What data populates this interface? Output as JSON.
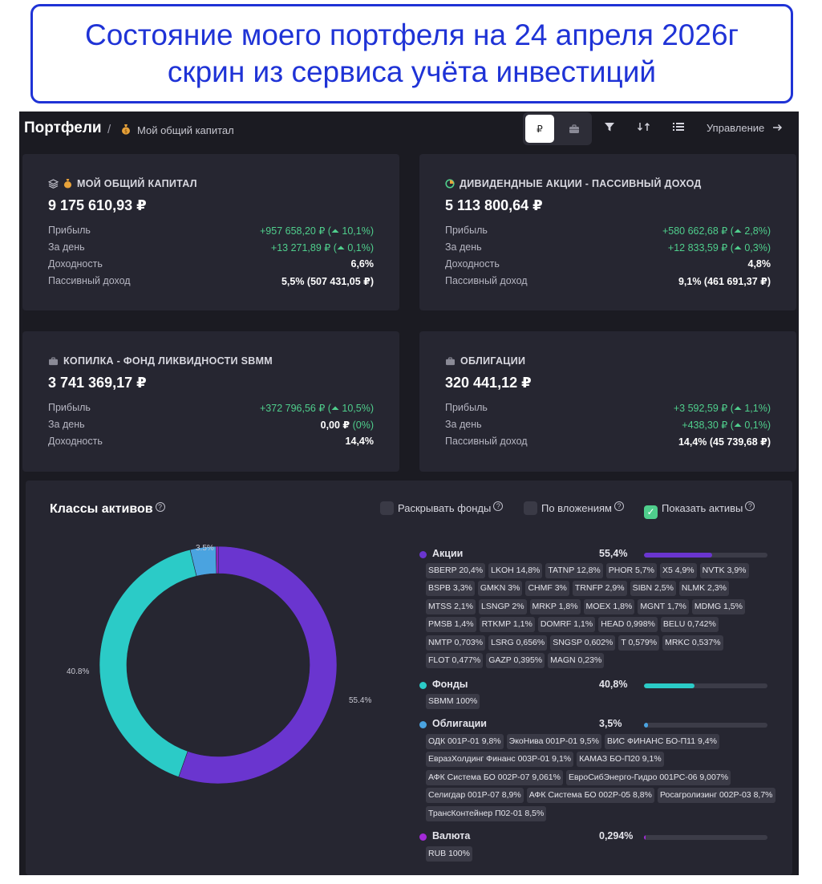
{
  "banner": {
    "line1": "Состояние моего портфеля на 24 апреля 2026г",
    "line2": "скрин из сервиса учёта инвестиций"
  },
  "header": {
    "title": "Портфели",
    "separator": "/",
    "breadcrumb": "Мой общий капитал",
    "currency_button": "₽",
    "manage_label": "Управление"
  },
  "cards": [
    {
      "title": "МОЙ ОБЩИЙ КАПИТАЛ",
      "value": "9 175 610,93 ₽",
      "rows": [
        {
          "label": "Прибыль",
          "value": "+957 658,20 ₽ (⏶ 10,1%)",
          "green": true
        },
        {
          "label": "За день",
          "value": "+13 271,89 ₽ (⏶ 0,1%)",
          "green": true
        },
        {
          "label": "Доходность",
          "value": "6,6%",
          "green": false
        },
        {
          "label": "Пассивный доход",
          "value": "5,5% (507 431,05 ₽)",
          "green": false
        }
      ]
    },
    {
      "title": "ДИВИДЕНДНЫЕ АКЦИИ - ПАССИВНЫЙ ДОХОД",
      "value": "5 113 800,64 ₽",
      "rows": [
        {
          "label": "Прибыль",
          "value": "+580 662,68 ₽ (⏶ 2,8%)",
          "green": true
        },
        {
          "label": "За день",
          "value": "+12 833,59 ₽ (⏶ 0,3%)",
          "green": true
        },
        {
          "label": "Доходность",
          "value": "4,8%",
          "green": false
        },
        {
          "label": "Пассивный доход",
          "value": "9,1% (461 691,37 ₽)",
          "green": false
        }
      ]
    },
    {
      "title": "КОПИЛКА - ФОНД ЛИКВИДНОСТИ SBMM",
      "value": "3 741 369,17 ₽",
      "rows": [
        {
          "label": "Прибыль",
          "value": "+372 796,56 ₽ (⏶ 10,5%)",
          "green": true
        },
        {
          "label": "За день",
          "value": "0,00 ₽",
          "value_suffix": " (0%)",
          "green": false
        },
        {
          "label": "Доходность",
          "value": "14,4%",
          "green": false
        }
      ]
    },
    {
      "title": "ОБЛИГАЦИИ",
      "value": "320 441,12 ₽",
      "rows": [
        {
          "label": "Прибыль",
          "value": "+3 592,59 ₽ (⏶ 1,1%)",
          "green": true
        },
        {
          "label": "За день",
          "value": "+438,30 ₽ (⏶ 0,1%)",
          "green": true
        },
        {
          "label": "Пассивный доход",
          "value": "14,4% (45 739,68 ₽)",
          "green": false
        }
      ]
    }
  ],
  "assets": {
    "title": "Классы активов",
    "options": [
      {
        "label": "Раскрывать фонды",
        "checked": false
      },
      {
        "label": "По вложениям",
        "checked": false
      },
      {
        "label": "Показать активы",
        "checked": true
      }
    ],
    "chart_labels": [
      "55.4%",
      "40.8%",
      "3.5%"
    ],
    "categories": [
      {
        "name": "Акции",
        "pct": "55,4%",
        "share": 0.554,
        "color": "#6a35cf",
        "tags": [
          "SBERP 20,4%",
          "LKOH 14,8%",
          "TATNP 12,8%",
          "PHOR 5,7%",
          "X5 4,9%",
          "NVTK 3,9%",
          "BSPB 3,3%",
          "GMKN 3%",
          "CHMF 3%",
          "TRNFP 2,9%",
          "SIBN 2,5%",
          "NLMK 2,3%",
          "MTSS 2,1%",
          "LSNGP 2%",
          "MRKP 1,8%",
          "MOEX 1,8%",
          "MGNT 1,7%",
          "MDMG 1,5%",
          "PMSB 1,4%",
          "RTKMP 1,1%",
          "DOMRF 1,1%",
          "HEAD 0,998%",
          "BELU 0,742%",
          "NMTP 0,703%",
          "LSRG 0,656%",
          "SNGSP 0,602%",
          "T 0,579%",
          "MRKC 0,537%",
          "FLOT 0,477%",
          "GAZP 0,395%",
          "MAGN 0,23%"
        ]
      },
      {
        "name": "Фонды",
        "pct": "40,8%",
        "share": 0.408,
        "color": "#2bcbc7",
        "tags": [
          "SBMM 100%"
        ]
      },
      {
        "name": "Облигации",
        "pct": "3,5%",
        "share": 0.035,
        "color": "#4aa3e0",
        "tags": [
          "ОДК 001Р-01 9,8%",
          "ЭкоНива 001Р-01 9,5%",
          "ВИС ФИНАНС БО-П11 9,4%",
          "ЕвразХолдинг Финанс 003Р-01 9,1%",
          "КАМАЗ БО-П20 9,1%",
          "АФК Система БО 002Р-07 9,061%",
          "ЕвроСибЭнерго-Гидро 001РС-06 9,007%",
          "Селигдар 001Р-07 8,9%",
          "АФК Система БО 002Р-05 8,8%",
          "Росагролизинг 002Р-03 8,7%",
          "ТрансКонтейнер П02-01 8,5%"
        ]
      },
      {
        "name": "Валюта",
        "pct": "0,294%",
        "share": 0.00294,
        "color": "#a32ad8",
        "tags": [
          "RUB 100%"
        ]
      }
    ]
  },
  "chart_data": {
    "type": "pie",
    "title": "Классы активов",
    "categories": [
      "Акции",
      "Фонды",
      "Облигации",
      "Валюта"
    ],
    "values": [
      55.4,
      40.8,
      3.5,
      0.294
    ],
    "colors": [
      "#6a35cf",
      "#2bcbc7",
      "#4aa3e0",
      "#a32ad8"
    ],
    "donut": true
  }
}
